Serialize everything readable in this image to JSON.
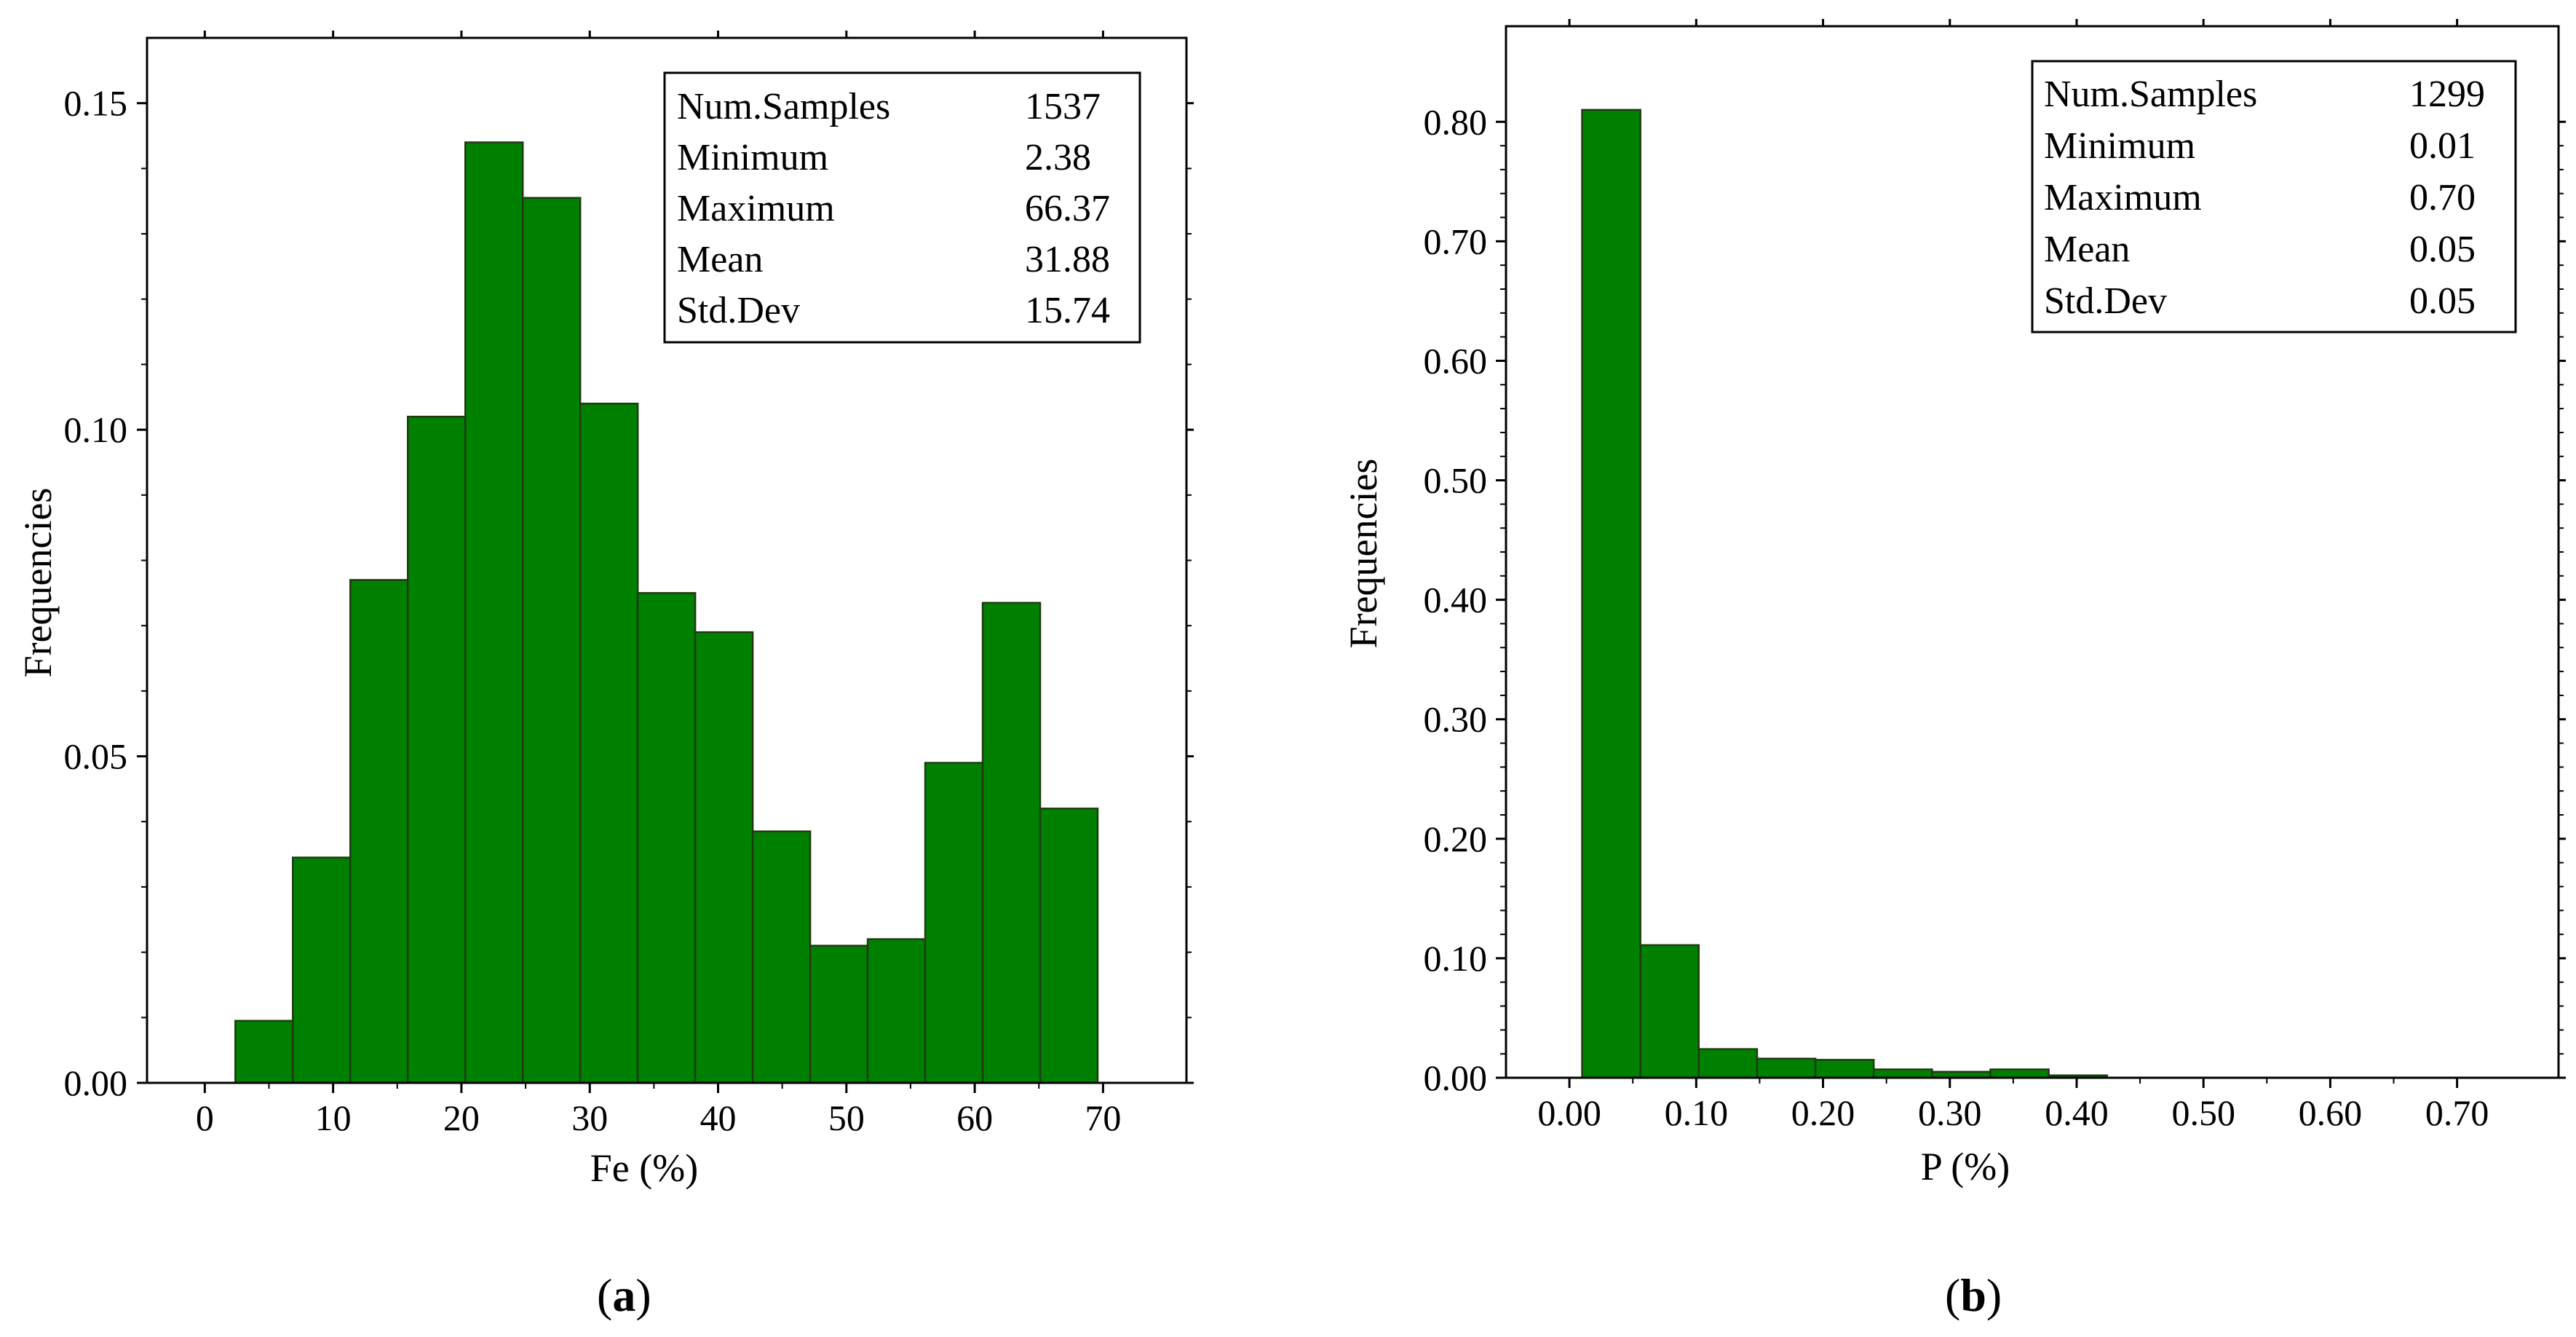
{
  "chart_data": [
    {
      "id": "a",
      "type": "bar",
      "panel_label": "a",
      "xlabel": "Fe (%)",
      "ylabel": "Frequencies",
      "xlim": [
        -4.5,
        76.5
      ],
      "ylim": [
        0.0,
        0.16
      ],
      "x_ticks": [
        0,
        10,
        20,
        30,
        40,
        50,
        60,
        70
      ],
      "x_tick_labels": [
        "0",
        "10",
        "20",
        "30",
        "40",
        "50",
        "60",
        "70"
      ],
      "y_ticks": [
        0.0,
        0.05,
        0.1,
        0.15
      ],
      "y_tick_labels": [
        "0.00",
        "0.05",
        "0.10",
        "0.15"
      ],
      "bar_color": "#008000",
      "bins": [
        {
          "x0": 2.38,
          "x1": 6.86,
          "value": 0.0095
        },
        {
          "x0": 6.86,
          "x1": 11.34,
          "value": 0.0345
        },
        {
          "x0": 11.34,
          "x1": 15.82,
          "value": 0.077
        },
        {
          "x0": 15.82,
          "x1": 20.3,
          "value": 0.102
        },
        {
          "x0": 20.3,
          "x1": 24.78,
          "value": 0.144
        },
        {
          "x0": 24.78,
          "x1": 29.26,
          "value": 0.1355
        },
        {
          "x0": 29.26,
          "x1": 33.74,
          "value": 0.104
        },
        {
          "x0": 33.74,
          "x1": 38.22,
          "value": 0.075
        },
        {
          "x0": 38.22,
          "x1": 42.7,
          "value": 0.069
        },
        {
          "x0": 42.7,
          "x1": 47.18,
          "value": 0.0385
        },
        {
          "x0": 47.18,
          "x1": 51.66,
          "value": 0.021
        },
        {
          "x0": 51.66,
          "x1": 56.14,
          "value": 0.022
        },
        {
          "x0": 56.14,
          "x1": 60.62,
          "value": 0.049
        },
        {
          "x0": 60.62,
          "x1": 65.1,
          "value": 0.0735
        },
        {
          "x0": 65.1,
          "x1": 69.58,
          "value": 0.042
        }
      ],
      "stats": [
        {
          "label": "Num.Samples",
          "value": "1537"
        },
        {
          "label": "Minimum",
          "value": "2.38"
        },
        {
          "label": "Maximum",
          "value": "66.37"
        },
        {
          "label": "Mean",
          "value": "31.88"
        },
        {
          "label": "Std.Dev",
          "value": "15.74"
        }
      ]
    },
    {
      "id": "b",
      "type": "bar",
      "panel_label": "b",
      "xlabel": "P (%)",
      "ylabel": "Frequencies",
      "xlim": [
        -0.05,
        0.78
      ],
      "ylim": [
        0.0,
        0.88
      ],
      "x_ticks": [
        0.0,
        0.1,
        0.2,
        0.3,
        0.4,
        0.5,
        0.6,
        0.7
      ],
      "x_tick_labels": [
        "0.00",
        "0.10",
        "0.20",
        "0.30",
        "0.40",
        "0.50",
        "0.60",
        "0.70"
      ],
      "y_ticks": [
        0.0,
        0.1,
        0.2,
        0.3,
        0.4,
        0.5,
        0.6,
        0.7,
        0.8
      ],
      "y_tick_labels": [
        "0.00",
        "0.10",
        "0.20",
        "0.30",
        "0.40",
        "0.50",
        "0.60",
        "0.70",
        "0.80"
      ],
      "bar_color": "#008000",
      "bins": [
        {
          "x0": 0.01,
          "x1": 0.056,
          "value": 0.81
        },
        {
          "x0": 0.056,
          "x1": 0.102,
          "value": 0.111
        },
        {
          "x0": 0.102,
          "x1": 0.148,
          "value": 0.024
        },
        {
          "x0": 0.148,
          "x1": 0.194,
          "value": 0.016
        },
        {
          "x0": 0.194,
          "x1": 0.24,
          "value": 0.015
        },
        {
          "x0": 0.24,
          "x1": 0.286,
          "value": 0.007
        },
        {
          "x0": 0.286,
          "x1": 0.332,
          "value": 0.005
        },
        {
          "x0": 0.332,
          "x1": 0.378,
          "value": 0.007
        },
        {
          "x0": 0.378,
          "x1": 0.424,
          "value": 0.002
        }
      ],
      "stats": [
        {
          "label": "Num.Samples",
          "value": "1299"
        },
        {
          "label": "Minimum",
          "value": "0.01"
        },
        {
          "label": "Maximum",
          "value": "0.70"
        },
        {
          "label": "Mean",
          "value": "0.05"
        },
        {
          "label": "Std.Dev",
          "value": "0.05"
        }
      ]
    }
  ]
}
